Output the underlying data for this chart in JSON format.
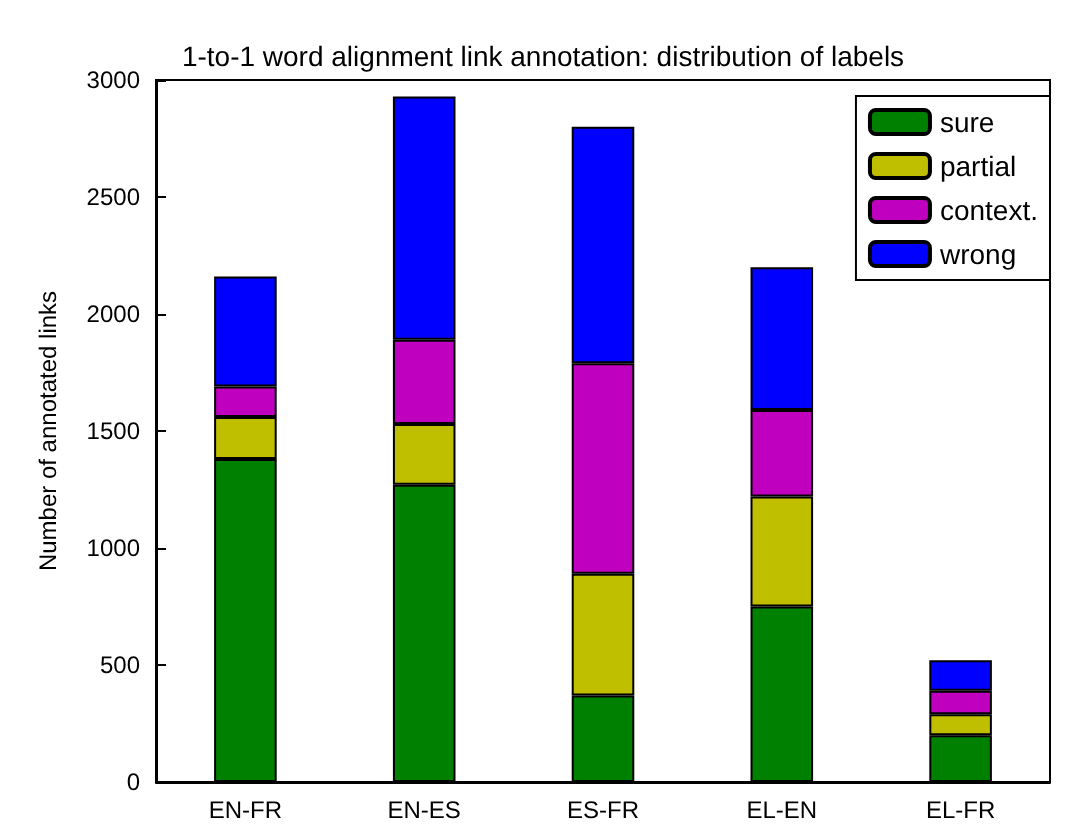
{
  "chart_data": {
    "type": "bar",
    "title": "1-to-1 word alignment link annotation: distribution of labels",
    "ylabel": "Number of annotated links",
    "categories": [
      "EN-FR",
      "EN-ES",
      "ES-FR",
      "EL-EN",
      "EL-FR"
    ],
    "series": [
      {
        "name": "sure",
        "color": "#008000",
        "values": [
          1380,
          1270,
          370,
          750,
          200
        ]
      },
      {
        "name": "partial",
        "color": "#bfbf00",
        "values": [
          180,
          260,
          520,
          470,
          90
        ]
      },
      {
        "name": "context.",
        "color": "#bf00bf",
        "values": [
          130,
          360,
          900,
          370,
          100
        ]
      },
      {
        "name": "wrong",
        "color": "#0000ff",
        "values": [
          470,
          1040,
          1010,
          610,
          130
        ]
      }
    ],
    "stacked": true,
    "ylim": [
      0,
      3000
    ],
    "yticks": [
      0,
      500,
      1000,
      1500,
      2000,
      2500,
      3000
    ],
    "grid": false,
    "legend": "top right"
  }
}
